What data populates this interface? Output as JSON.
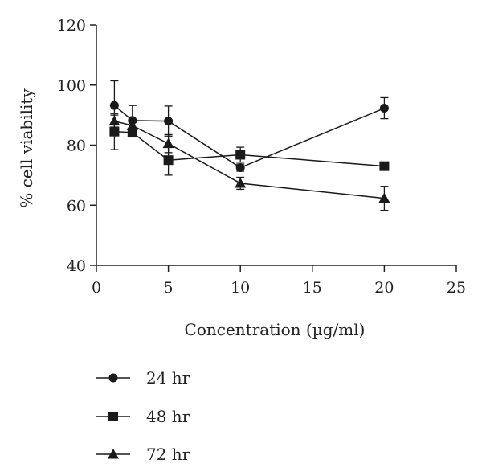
{
  "chart_data": {
    "type": "line",
    "title": "",
    "xlabel": "Concentration (µg/ml)",
    "ylabel": "% cell viability",
    "xlim": [
      0,
      25
    ],
    "ylim": [
      40,
      120
    ],
    "x_ticks": [
      0,
      5,
      10,
      15,
      20,
      25
    ],
    "y_ticks": [
      40,
      60,
      80,
      100,
      120
    ],
    "grid": false,
    "legend_position": "bottom-left",
    "x": [
      1.25,
      2.5,
      5,
      10,
      20
    ],
    "series": [
      {
        "name": "24 hr",
        "marker": "circle",
        "values": [
          93.2,
          88.2,
          88.0,
          72.5,
          92.3
        ],
        "error": [
          8.2,
          5.0,
          5.0,
          1.2,
          3.5
        ]
      },
      {
        "name": "48 hr",
        "marker": "square",
        "values": [
          84.5,
          84.2,
          75.0,
          76.8,
          73.0
        ],
        "error": [
          6.0,
          1.5,
          5.0,
          2.5,
          0.8
        ]
      },
      {
        "name": "72 hr",
        "marker": "triangle",
        "values": [
          88.0,
          86.5,
          80.5,
          67.3,
          62.3
        ],
        "error": [
          2.0,
          1.0,
          3.0,
          2.0,
          4.0
        ]
      }
    ]
  }
}
